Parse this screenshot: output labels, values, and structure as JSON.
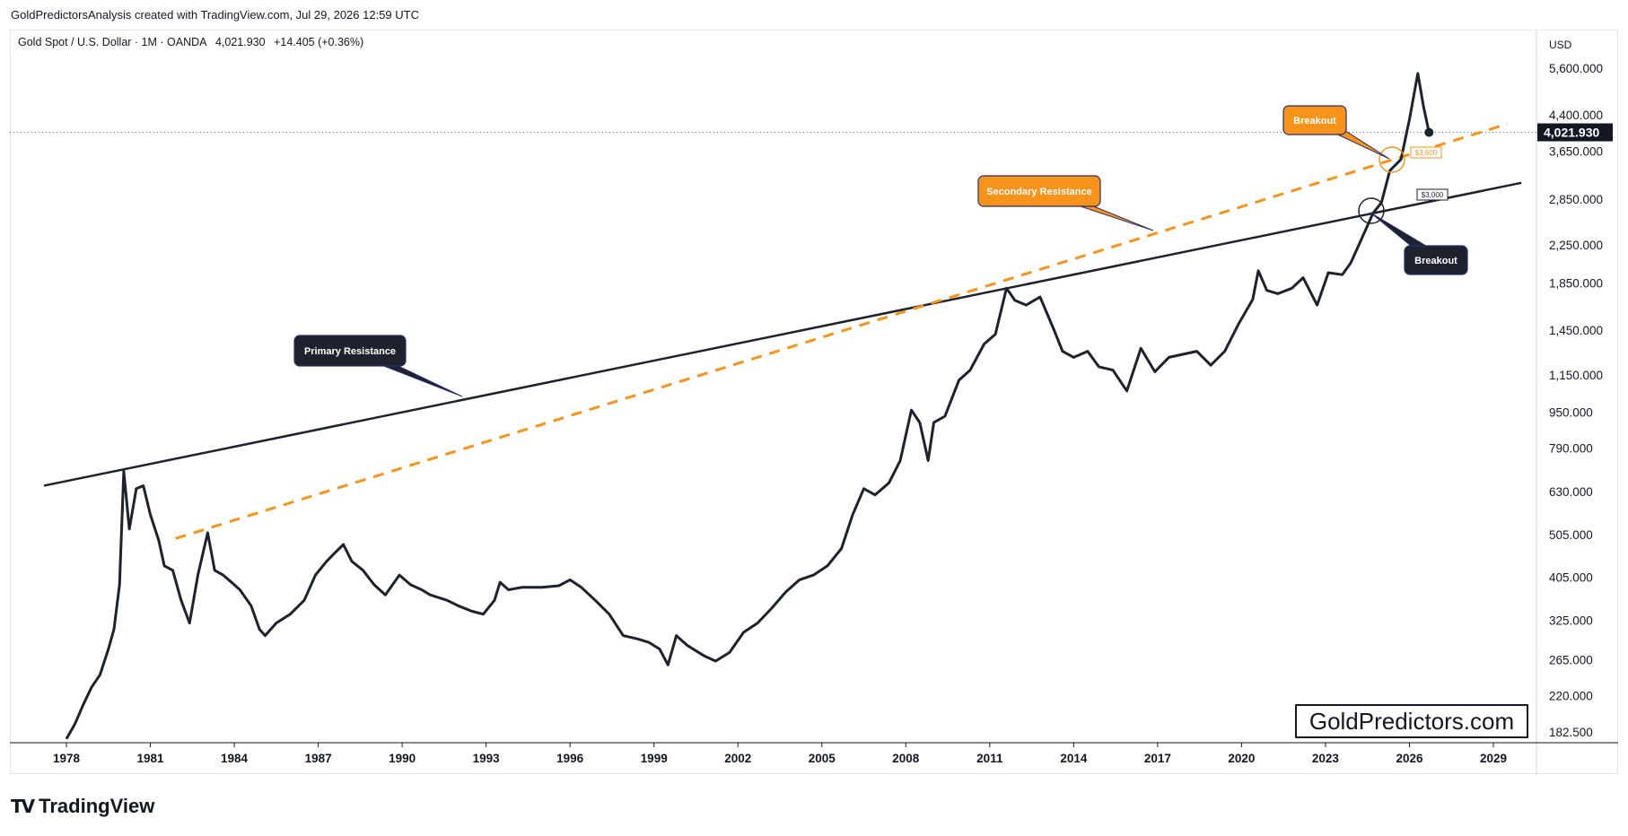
{
  "header": {
    "attribution": "GoldPredictorsAnalysis created with TradingView.com, Jul 29, 2026 12:59 UTC"
  },
  "legend": {
    "symbol": "Gold Spot / U.S. Dollar · 1M · OANDA",
    "price": "4,021.930",
    "change": "+14.405 (+0.36%)"
  },
  "watermark": "GoldPredictors.com",
  "brand": "TradingView",
  "colors": {
    "price_line": "#1e222d",
    "primary": "#1e222d",
    "secondary": "#f7931a",
    "badge_dark": "#1e222d",
    "badge_orange": "#f7931a"
  },
  "chart_data": {
    "type": "line",
    "scale": "log",
    "currency": "USD",
    "x_ticks": [
      "1978",
      "1981",
      "1984",
      "1987",
      "1990",
      "1993",
      "1996",
      "1999",
      "2002",
      "2005",
      "2008",
      "2011",
      "2014",
      "2017",
      "2020",
      "2023",
      "2026",
      "2029"
    ],
    "y_ticks": [
      "5,600.000",
      "4,400.000",
      "3,650.000",
      "2,850.000",
      "2,250.000",
      "1,850.000",
      "1,450.000",
      "1,150.000",
      "950.000",
      "790.000",
      "630.000",
      "505.000",
      "405.000",
      "325.000",
      "265.000",
      "220.000",
      "182.500"
    ],
    "y_range": [
      165,
      6200
    ],
    "x_range": [
      1976.2,
      2030.6
    ],
    "last_price": 4021.93,
    "last_price_label": "4,021.930",
    "series": [
      {
        "points": [
          [
            1978.0,
            176
          ],
          [
            1978.3,
            190
          ],
          [
            1978.6,
            210
          ],
          [
            1978.9,
            230
          ],
          [
            1979.2,
            245
          ],
          [
            1979.5,
            280
          ],
          [
            1979.7,
            310
          ],
          [
            1979.9,
            390
          ],
          [
            1980.05,
            700
          ],
          [
            1980.25,
            520
          ],
          [
            1980.5,
            640
          ],
          [
            1980.75,
            650
          ],
          [
            1981.0,
            560
          ],
          [
            1981.3,
            490
          ],
          [
            1981.5,
            430
          ],
          [
            1981.8,
            420
          ],
          [
            1982.1,
            360
          ],
          [
            1982.4,
            320
          ],
          [
            1982.7,
            410
          ],
          [
            1983.05,
            510
          ],
          [
            1983.3,
            420
          ],
          [
            1983.6,
            410
          ],
          [
            1983.9,
            395
          ],
          [
            1984.2,
            380
          ],
          [
            1984.6,
            350
          ],
          [
            1984.9,
            310
          ],
          [
            1985.1,
            300
          ],
          [
            1985.5,
            320
          ],
          [
            1986.0,
            335
          ],
          [
            1986.5,
            360
          ],
          [
            1986.9,
            410
          ],
          [
            1987.3,
            440
          ],
          [
            1987.6,
            460
          ],
          [
            1987.9,
            480
          ],
          [
            1988.2,
            440
          ],
          [
            1988.6,
            420
          ],
          [
            1989.0,
            390
          ],
          [
            1989.4,
            370
          ],
          [
            1989.9,
            410
          ],
          [
            1990.3,
            390
          ],
          [
            1990.7,
            380
          ],
          [
            1991.0,
            370
          ],
          [
            1991.6,
            360
          ],
          [
            1992.0,
            350
          ],
          [
            1992.5,
            340
          ],
          [
            1992.9,
            335
          ],
          [
            1993.3,
            360
          ],
          [
            1993.5,
            395
          ],
          [
            1993.8,
            380
          ],
          [
            1994.3,
            385
          ],
          [
            1995.0,
            385
          ],
          [
            1995.6,
            388
          ],
          [
            1996.0,
            400
          ],
          [
            1996.4,
            385
          ],
          [
            1996.9,
            360
          ],
          [
            1997.4,
            335
          ],
          [
            1997.9,
            300
          ],
          [
            1998.4,
            295
          ],
          [
            1998.8,
            290
          ],
          [
            1999.2,
            280
          ],
          [
            1999.5,
            258
          ],
          [
            1999.8,
            300
          ],
          [
            2000.2,
            285
          ],
          [
            2000.8,
            270
          ],
          [
            2001.2,
            263
          ],
          [
            2001.7,
            275
          ],
          [
            2002.2,
            305
          ],
          [
            2002.7,
            320
          ],
          [
            2003.2,
            345
          ],
          [
            2003.7,
            375
          ],
          [
            2004.2,
            400
          ],
          [
            2004.7,
            410
          ],
          [
            2005.2,
            430
          ],
          [
            2005.7,
            470
          ],
          [
            2006.1,
            560
          ],
          [
            2006.5,
            640
          ],
          [
            2006.9,
            620
          ],
          [
            2007.4,
            660
          ],
          [
            2007.8,
            740
          ],
          [
            2008.2,
            960
          ],
          [
            2008.5,
            900
          ],
          [
            2008.8,
            740
          ],
          [
            2009.0,
            900
          ],
          [
            2009.4,
            930
          ],
          [
            2009.9,
            1120
          ],
          [
            2010.3,
            1180
          ],
          [
            2010.8,
            1350
          ],
          [
            2011.2,
            1420
          ],
          [
            2011.6,
            1800
          ],
          [
            2011.9,
            1690
          ],
          [
            2012.3,
            1650
          ],
          [
            2012.8,
            1720
          ],
          [
            2013.3,
            1450
          ],
          [
            2013.6,
            1300
          ],
          [
            2014.0,
            1260
          ],
          [
            2014.5,
            1300
          ],
          [
            2014.9,
            1200
          ],
          [
            2015.4,
            1180
          ],
          [
            2015.9,
            1060
          ],
          [
            2016.4,
            1320
          ],
          [
            2016.9,
            1170
          ],
          [
            2017.4,
            1260
          ],
          [
            2017.9,
            1280
          ],
          [
            2018.4,
            1300
          ],
          [
            2018.9,
            1210
          ],
          [
            2019.4,
            1300
          ],
          [
            2019.9,
            1500
          ],
          [
            2020.4,
            1700
          ],
          [
            2020.6,
            1970
          ],
          [
            2020.9,
            1780
          ],
          [
            2021.3,
            1750
          ],
          [
            2021.8,
            1800
          ],
          [
            2022.2,
            1900
          ],
          [
            2022.7,
            1650
          ],
          [
            2023.1,
            1950
          ],
          [
            2023.6,
            1930
          ],
          [
            2023.9,
            2050
          ],
          [
            2024.3,
            2330
          ],
          [
            2024.7,
            2650
          ],
          [
            2025.0,
            2800
          ],
          [
            2025.3,
            3300
          ],
          [
            2025.7,
            3500
          ],
          [
            2026.0,
            4300
          ],
          [
            2026.3,
            5450
          ],
          [
            2026.5,
            4600
          ],
          [
            2026.7,
            4020
          ]
        ]
      }
    ],
    "trendlines": [
      {
        "name": "Primary Resistance",
        "style": "solid",
        "from": [
          1977.2,
          650
        ],
        "to": [
          2030.0,
          3100
        ]
      },
      {
        "name": "Secondary Resistance",
        "style": "dashed",
        "from": [
          1981.9,
          495
        ],
        "to": [
          2029.5,
          4200
        ]
      }
    ],
    "annotations": [
      {
        "text": "Primary Resistance",
        "style": "dark"
      },
      {
        "text": "Secondary Resistance",
        "style": "orange"
      },
      {
        "text": "Breakout",
        "style": "orange"
      },
      {
        "text": "Breakout",
        "style": "dark"
      }
    ],
    "price_tags": [
      "$3,600",
      "$3,000"
    ],
    "grid": false
  }
}
